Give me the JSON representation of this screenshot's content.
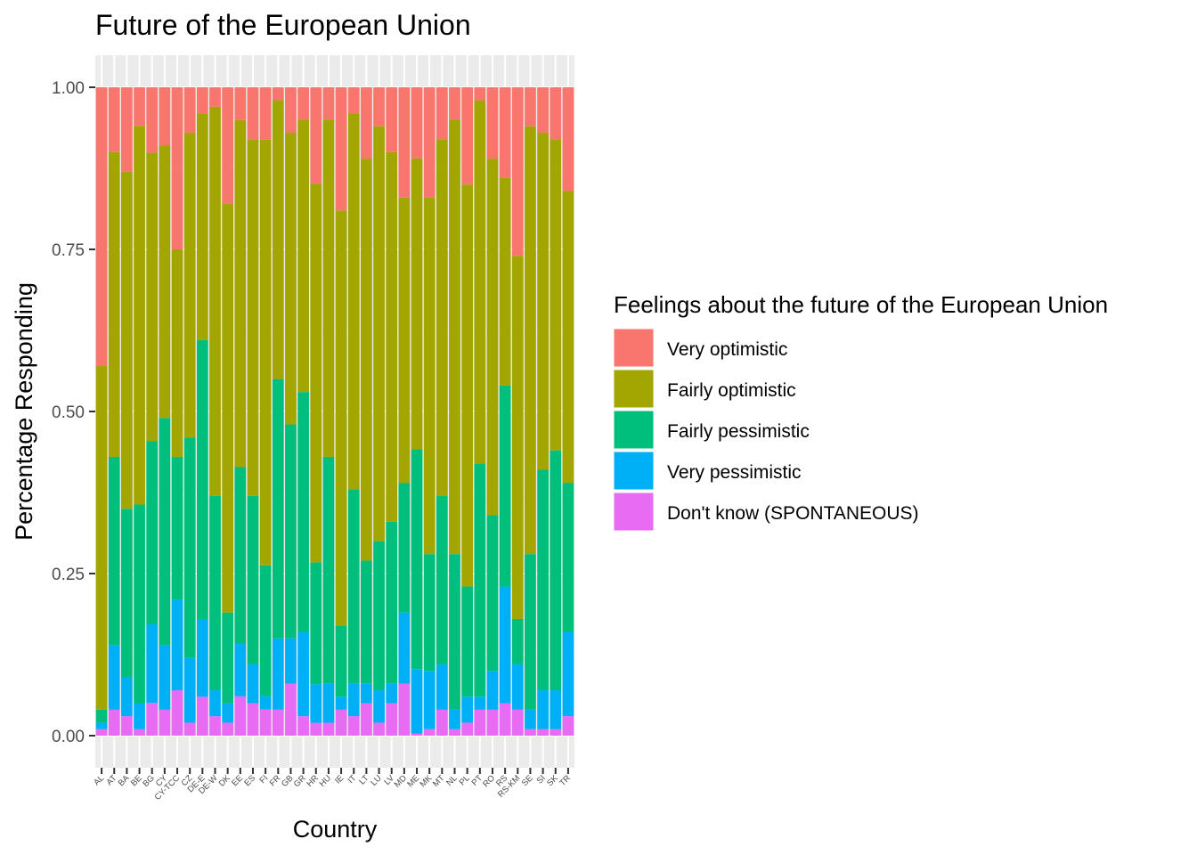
{
  "chart_data": {
    "type": "bar",
    "stacked": true,
    "title": "Future of the European Union",
    "xlabel": "Country",
    "ylabel": "Percentage Responding",
    "ylim": [
      0,
      1
    ],
    "yticks": [
      "0.00",
      "0.25",
      "0.50",
      "0.75",
      "1.00"
    ],
    "ytick_values": [
      0,
      0.25,
      0.5,
      0.75,
      1
    ],
    "legend_title": "Feelings about the future of the European Union",
    "legend_position": "right",
    "categories": [
      "AL",
      "AT",
      "BA",
      "BE",
      "BG",
      "CY",
      "CY-TCC",
      "CZ",
      "DE-E",
      "DE-W",
      "DK",
      "EE",
      "ES",
      "FI",
      "FR",
      "GB",
      "GR",
      "HR",
      "HU",
      "IE",
      "IT",
      "LT",
      "LU",
      "LV",
      "MD",
      "ME",
      "MK",
      "MT",
      "NL",
      "PL",
      "PT",
      "RO",
      "RS",
      "RS-KM",
      "SE",
      "SI",
      "SK",
      "TR"
    ],
    "series": [
      {
        "name": "Very optimistic",
        "color": "#F8766D",
        "values": [
          0.43,
          0.1,
          0.13,
          0.06,
          0.1,
          0.09,
          0.25,
          0.07,
          0.04,
          0.03,
          0.18,
          0.05,
          0.08,
          0.08,
          0.02,
          0.07,
          0.05,
          0.15,
          0.05,
          0.19,
          0.04,
          0.11,
          0.06,
          0.1,
          0.17,
          0.11,
          0.17,
          0.08,
          0.05,
          0.15,
          0.02,
          0.11,
          0.14,
          0.26,
          0.06,
          0.07,
          0.08,
          0.16
        ]
      },
      {
        "name": "Fairly optimistic",
        "color": "#A3A500",
        "values": [
          0.53,
          0.47,
          0.52,
          0.59,
          0.44,
          0.42,
          0.32,
          0.47,
          0.35,
          0.6,
          0.63,
          0.53,
          0.55,
          0.65,
          0.43,
          0.45,
          0.42,
          0.59,
          0.52,
          0.64,
          0.58,
          0.62,
          0.64,
          0.57,
          0.44,
          0.45,
          0.55,
          0.55,
          0.67,
          0.62,
          0.56,
          0.55,
          0.32,
          0.56,
          0.66,
          0.52,
          0.48,
          0.45
        ]
      },
      {
        "name": "Fairly pessimistic",
        "color": "#00BF7D",
        "values": [
          0.02,
          0.29,
          0.26,
          0.31,
          0.28,
          0.35,
          0.22,
          0.34,
          0.43,
          0.3,
          0.14,
          0.27,
          0.26,
          0.2,
          0.4,
          0.33,
          0.37,
          0.19,
          0.35,
          0.11,
          0.3,
          0.19,
          0.23,
          0.25,
          0.2,
          0.34,
          0.18,
          0.26,
          0.24,
          0.17,
          0.36,
          0.24,
          0.31,
          0.07,
          0.24,
          0.34,
          0.37,
          0.23
        ]
      },
      {
        "name": "Very pessimistic",
        "color": "#00B0F6",
        "values": [
          0.01,
          0.1,
          0.06,
          0.04,
          0.12,
          0.1,
          0.14,
          0.1,
          0.12,
          0.04,
          0.03,
          0.08,
          0.06,
          0.02,
          0.11,
          0.07,
          0.13,
          0.06,
          0.06,
          0.02,
          0.05,
          0.03,
          0.05,
          0.03,
          0.11,
          0.1,
          0.09,
          0.07,
          0.03,
          0.04,
          0.02,
          0.06,
          0.18,
          0.07,
          0.03,
          0.06,
          0.06,
          0.13
        ]
      },
      {
        "name": "Don't know (SPONTANEOUS)",
        "color": "#E76BF3",
        "values": [
          0.01,
          0.04,
          0.03,
          0.01,
          0.05,
          0.04,
          0.07,
          0.02,
          0.06,
          0.03,
          0.02,
          0.06,
          0.05,
          0.04,
          0.04,
          0.08,
          0.03,
          0.02,
          0.02,
          0.04,
          0.03,
          0.05,
          0.02,
          0.05,
          0.08,
          0.003,
          0.01,
          0.04,
          0.01,
          0.02,
          0.04,
          0.04,
          0.05,
          0.04,
          0.01,
          0.01,
          0.01,
          0.03
        ]
      }
    ]
  }
}
